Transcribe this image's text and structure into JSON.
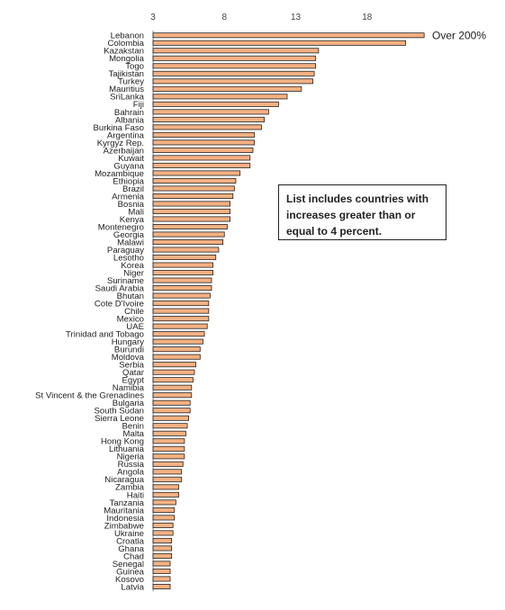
{
  "chart_data": {
    "type": "bar",
    "orientation": "horizontal",
    "xlim": [
      3,
      22
    ],
    "ticks": [
      3,
      8,
      13,
      18
    ],
    "bar_color": "#f4b183",
    "bar_edge_color": "#222222",
    "annotation": "Over 200%",
    "note": "List includes countries with increases greater than  or equal to 4 percent.",
    "categories": [
      "Lebanon",
      "Colombia",
      "Kazakstan",
      "Mongolia",
      "Togo",
      "Tajikistan",
      "Turkey",
      "Mauritius",
      "SriLanka",
      "Fiji",
      "Bahrain",
      "Albania",
      "Burkina Faso",
      "Argentina",
      "Kyrgyz Rep.",
      "Azerbaijan",
      "Kuwait",
      "Guyana",
      "Mozambique",
      "Ethiopia",
      "Brazil",
      "Armenia",
      "Bosnia",
      "Mali",
      "Kenya",
      "Montenegro",
      "Georgia",
      "Malawi",
      "Paraguay",
      "Lesotho",
      "Korea",
      "Niger",
      "Suriname",
      "Saudi Arabia",
      "Bhutan",
      "Cote D'Ivoire",
      "Chile",
      "Mexico",
      "UAE",
      "Trinidad and Tobago",
      "Hungary",
      "Burundi",
      "Moldova",
      "Serbia",
      "Qatar",
      "Egypt",
      "Namibia",
      "St Vincent & the Grenadines",
      "Bulgaria",
      "South Sudan",
      "Sierra Leone",
      "Benin",
      "Malta",
      "Hong Kong",
      "Lithuania",
      "Nigeria",
      "Russia",
      "Angola",
      "Nicaragua",
      "Zambia",
      "Haiti",
      "Tanzania",
      "Mauritania",
      "Indonesia",
      "Zimbabwe",
      "Ukraine",
      "Croatia",
      "Ghana",
      "Chad",
      "Senegal",
      "Guinea",
      "Kosovo",
      "Latvia"
    ],
    "values": [
      22.0,
      20.7,
      14.6,
      14.4,
      14.4,
      14.3,
      14.2,
      13.4,
      12.4,
      11.8,
      11.1,
      10.8,
      10.6,
      10.1,
      10.1,
      10.0,
      9.8,
      9.8,
      9.1,
      8.8,
      8.7,
      8.6,
      8.4,
      8.4,
      8.4,
      8.2,
      8.0,
      7.9,
      7.6,
      7.4,
      7.2,
      7.2,
      7.1,
      7.1,
      7.0,
      6.9,
      6.9,
      6.9,
      6.8,
      6.6,
      6.5,
      6.3,
      6.3,
      6.0,
      5.9,
      5.8,
      5.7,
      5.7,
      5.6,
      5.6,
      5.5,
      5.4,
      5.3,
      5.2,
      5.2,
      5.2,
      5.1,
      5.0,
      5.0,
      4.8,
      4.8,
      4.6,
      4.5,
      4.5,
      4.4,
      4.4,
      4.3,
      4.3,
      4.3,
      4.2,
      4.2,
      4.2,
      4.2
    ]
  }
}
